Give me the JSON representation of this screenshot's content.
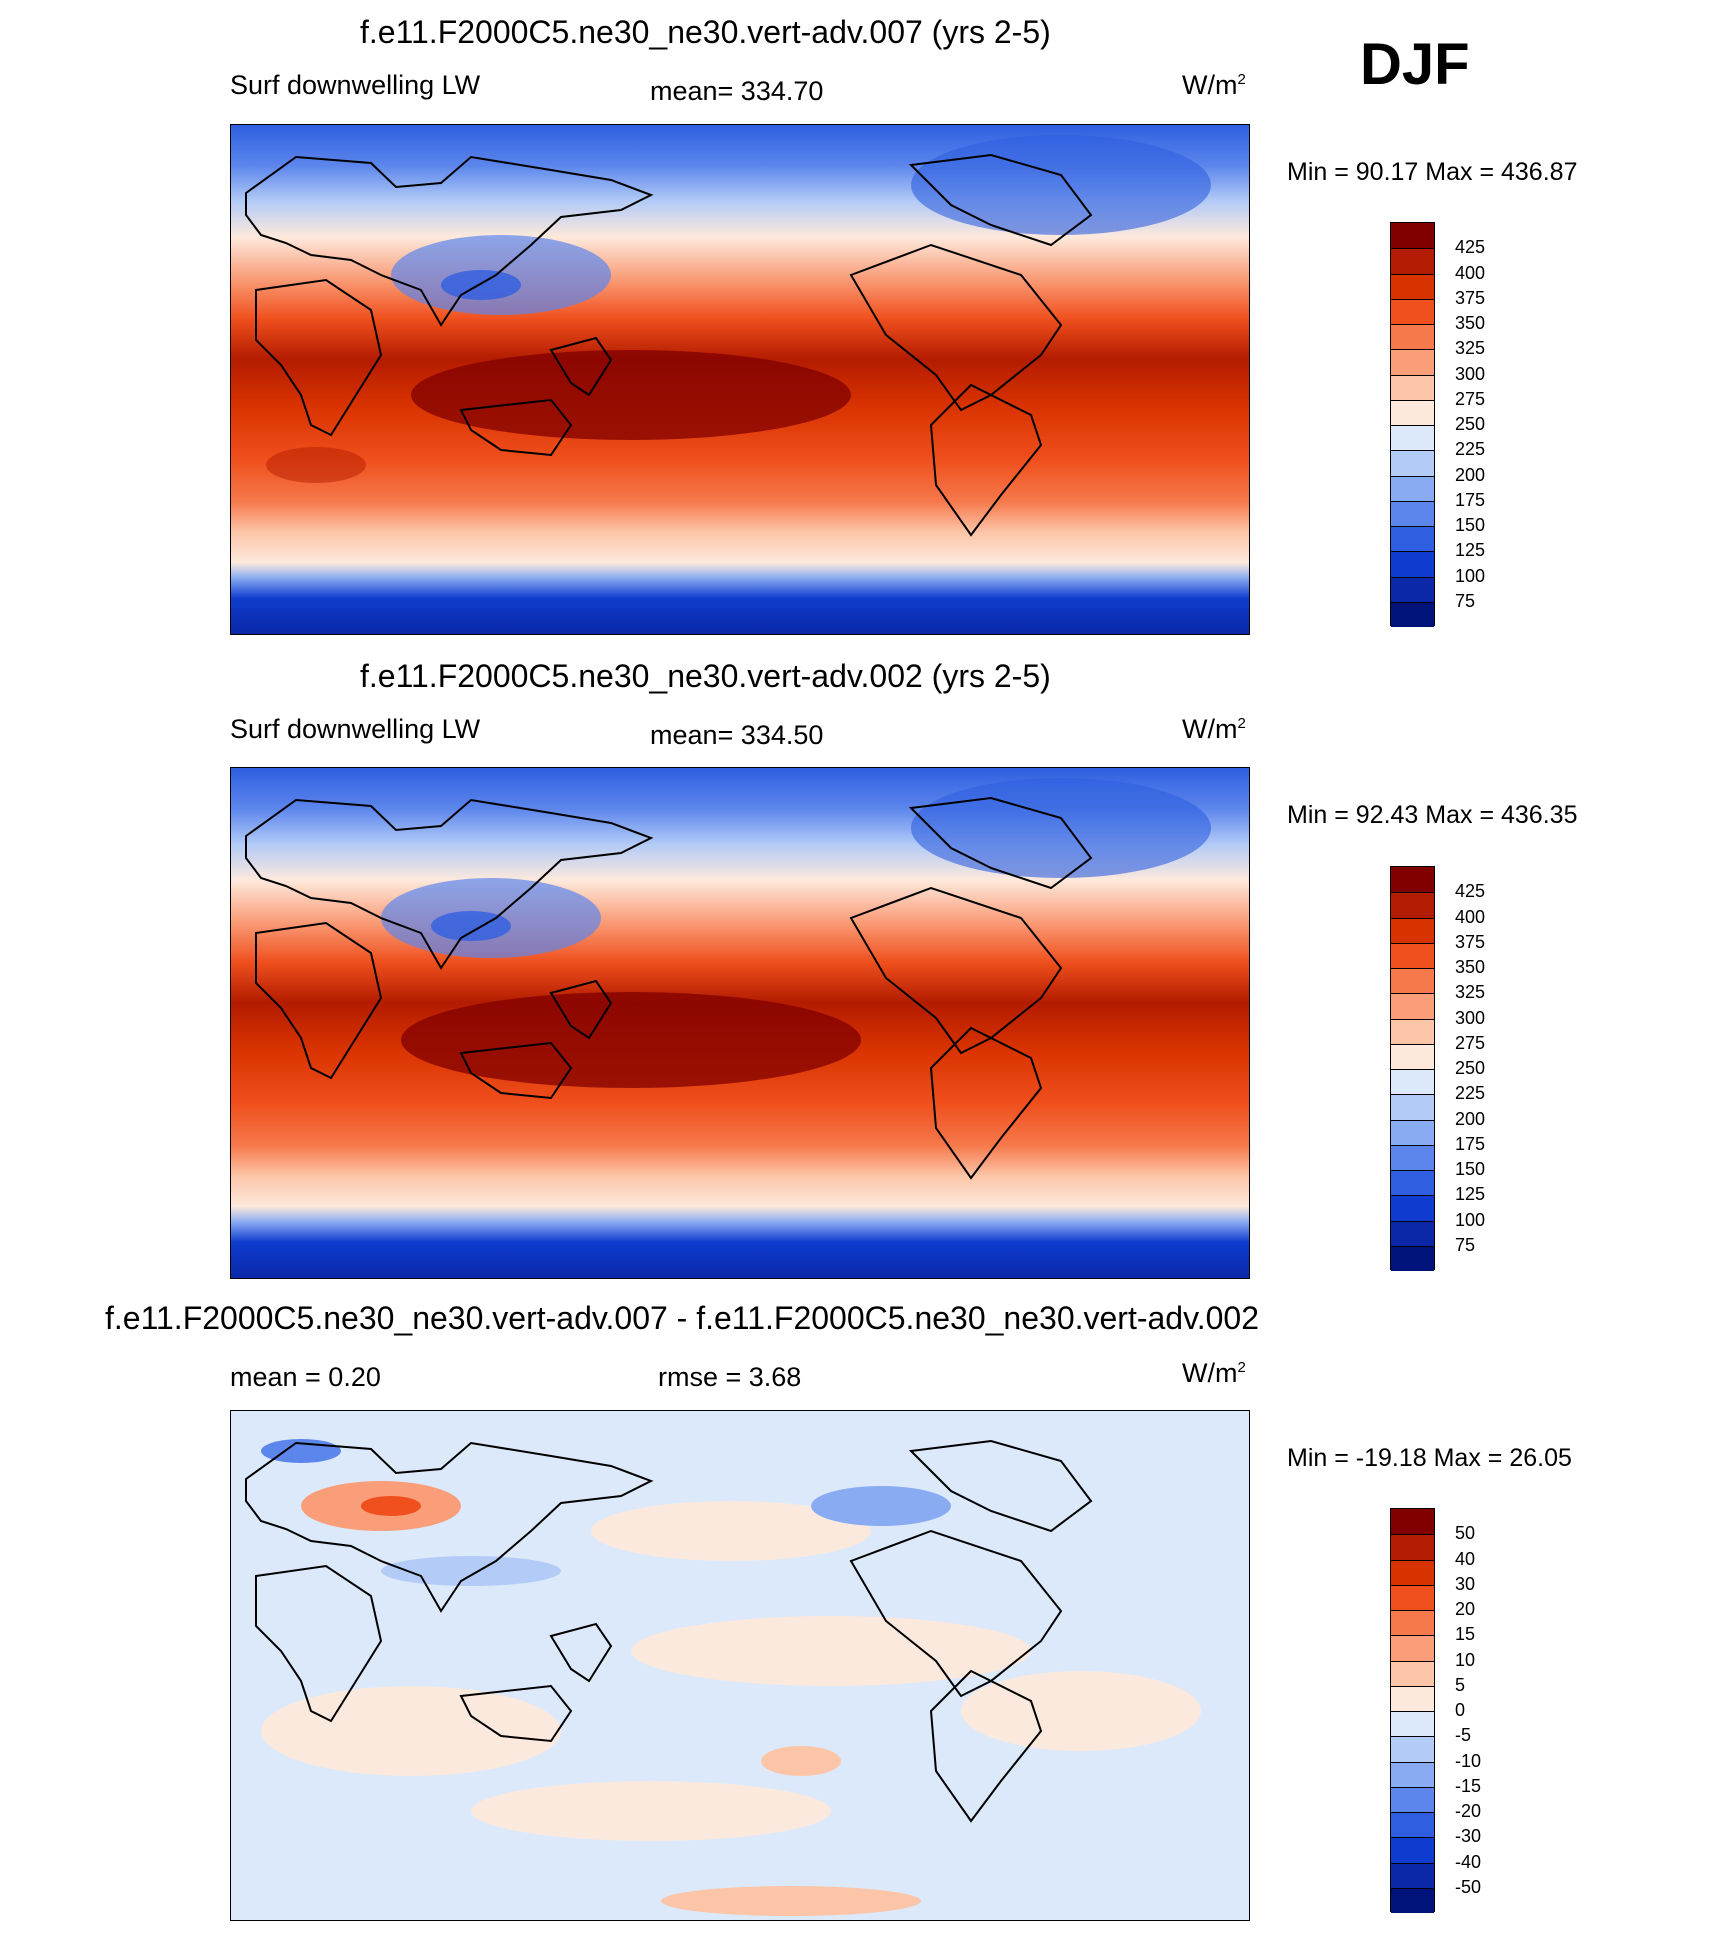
{
  "season": "DJF",
  "chart_data": [
    {
      "type": "heatmap",
      "title": "f.e11.F2000C5.ne30_ne30.vert-adv.007 (yrs 2-5)",
      "left_label": "Surf downwelling LW",
      "center_label": "mean= 334.70",
      "units_base": "W/m",
      "units_exp": "2",
      "min_max": "Min =  90.17 Max = 436.87",
      "color_levels": [
        "425",
        "400",
        "375",
        "350",
        "325",
        "300",
        "275",
        "250",
        "225",
        "200",
        "175",
        "150",
        "125",
        "100",
        "75"
      ],
      "colors": [
        "#800000",
        "#b31c00",
        "#d83200",
        "#f0501e",
        "#f6794c",
        "#fa9e7a",
        "#fdc5a8",
        "#fde9dc",
        "#dbe9fb",
        "#b3cbf7",
        "#89abf2",
        "#5c86ec",
        "#2f5fe0",
        "#0f3ccf",
        "#0a28a8",
        "#00137a"
      ],
      "grid": false
    },
    {
      "type": "heatmap",
      "title": "f.e11.F2000C5.ne30_ne30.vert-adv.002 (yrs 2-5)",
      "left_label": "Surf downwelling LW",
      "center_label": "mean= 334.50",
      "units_base": "W/m",
      "units_exp": "2",
      "min_max": "Min =  92.43 Max = 436.35",
      "color_levels": [
        "425",
        "400",
        "375",
        "350",
        "325",
        "300",
        "275",
        "250",
        "225",
        "200",
        "175",
        "150",
        "125",
        "100",
        "75"
      ],
      "colors": [
        "#800000",
        "#b31c00",
        "#d83200",
        "#f0501e",
        "#f6794c",
        "#fa9e7a",
        "#fdc5a8",
        "#fde9dc",
        "#dbe9fb",
        "#b3cbf7",
        "#89abf2",
        "#5c86ec",
        "#2f5fe0",
        "#0f3ccf",
        "#0a28a8",
        "#00137a"
      ],
      "grid": false
    },
    {
      "type": "heatmap",
      "title": "f.e11.F2000C5.ne30_ne30.vert-adv.007 - f.e11.F2000C5.ne30_ne30.vert-adv.002",
      "left_label": "mean =   0.20",
      "center_label": "rmse =   3.68",
      "units_base": "W/m",
      "units_exp": "2",
      "min_max": "Min = -19.18 Max =  26.05",
      "color_levels": [
        "50",
        "40",
        "30",
        "20",
        "15",
        "10",
        "5",
        "0",
        "-5",
        "-10",
        "-15",
        "-20",
        "-30",
        "-40",
        "-50"
      ],
      "colors": [
        "#800000",
        "#b31c00",
        "#d83200",
        "#f0501e",
        "#f6794c",
        "#fa9e7a",
        "#fdc5a8",
        "#fde9dc",
        "#dbe9fb",
        "#b3cbf7",
        "#89abf2",
        "#5c86ec",
        "#2f5fe0",
        "#0f3ccf",
        "#0a28a8",
        "#00137a"
      ],
      "grid": false
    }
  ]
}
